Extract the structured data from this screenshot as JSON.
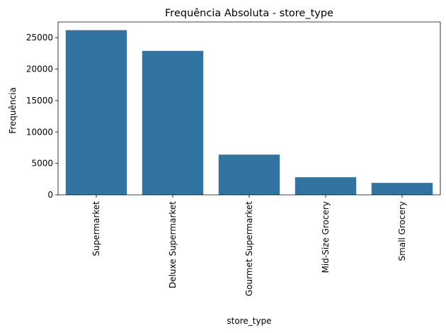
{
  "chart_data": {
    "type": "bar",
    "title": "Frequência Absoluta - store_type",
    "xlabel": "store_type",
    "ylabel": "Frequência",
    "categories": [
      "Supermarket",
      "Deluxe Supermarket",
      "Gourmet Supermarket",
      "Mid-Size Grocery",
      "Small Grocery"
    ],
    "values": [
      26200,
      22900,
      6400,
      2800,
      1900
    ],
    "ylim": [
      0,
      27500
    ],
    "yticks": [
      0,
      5000,
      10000,
      15000,
      20000,
      25000
    ],
    "grid": false,
    "legend": "none",
    "bar_color": "#3274a1"
  }
}
